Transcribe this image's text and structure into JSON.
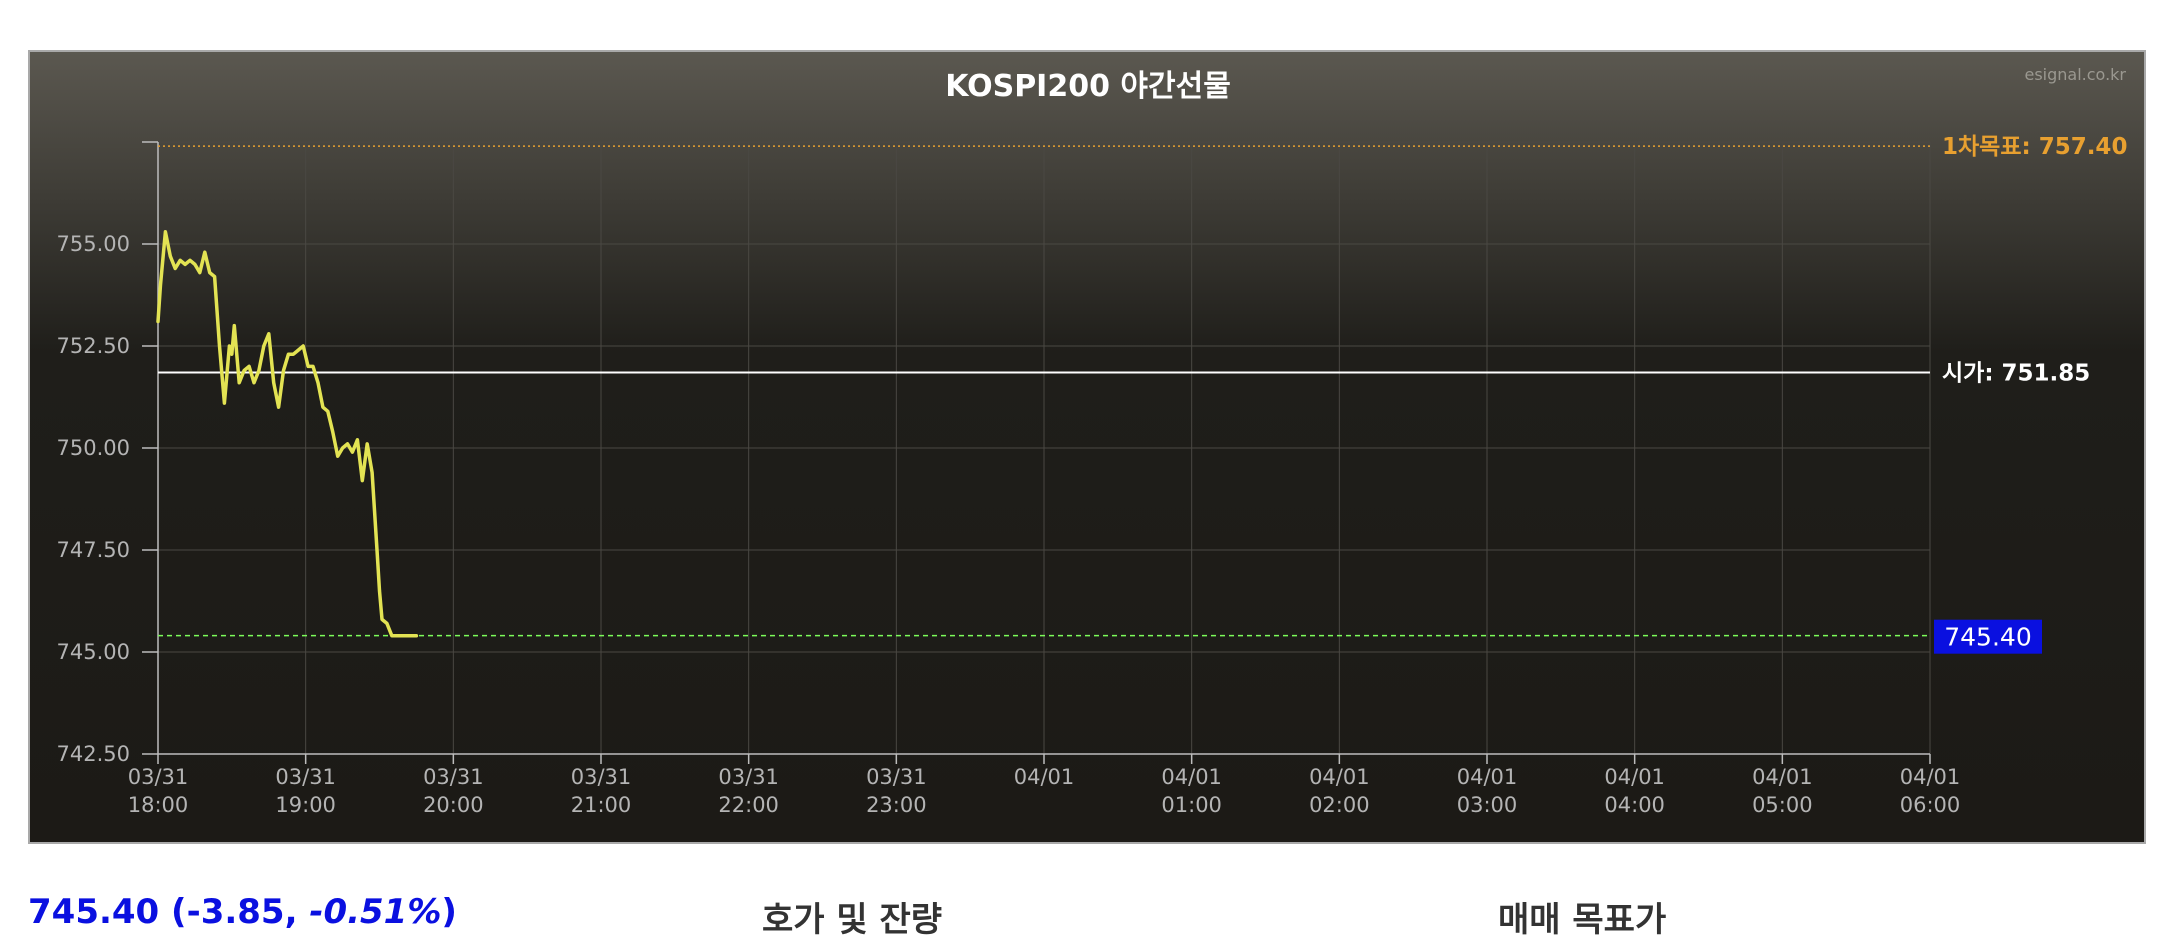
{
  "chart_data": {
    "type": "line",
    "title": "KOSPI200 야간선물",
    "watermark": "esignal.co.kr",
    "ylim": [
      742.5,
      757.5
    ],
    "y_ticks": [
      "742.50",
      "745.00",
      "747.50",
      "750.00",
      "752.50",
      "755.00"
    ],
    "x_ticks": [
      {
        "date": "03/31",
        "time": "18:00"
      },
      {
        "date": "03/31",
        "time": "19:00"
      },
      {
        "date": "03/31",
        "time": "20:00"
      },
      {
        "date": "03/31",
        "time": "21:00"
      },
      {
        "date": "03/31",
        "time": "22:00"
      },
      {
        "date": "03/31",
        "time": "23:00"
      },
      {
        "date": "04/01",
        "time": ""
      },
      {
        "date": "04/01",
        "time": "01:00"
      },
      {
        "date": "04/01",
        "time": "02:00"
      },
      {
        "date": "04/01",
        "time": "03:00"
      },
      {
        "date": "04/01",
        "time": "04:00"
      },
      {
        "date": "04/01",
        "time": "05:00"
      },
      {
        "date": "04/01",
        "time": "06:00"
      }
    ],
    "x_range": [
      "03/31 18:00",
      "04/01 06:00"
    ],
    "grid": true,
    "series": [
      {
        "color": "#e3e353",
        "x": [
          "18:00",
          "18:01",
          "18:03",
          "18:05",
          "18:07",
          "18:09",
          "18:11",
          "18:13",
          "18:15",
          "18:17",
          "18:19",
          "18:21",
          "18:23",
          "18:25",
          "18:27",
          "18:29",
          "18:30",
          "18:31",
          "18:33",
          "18:35",
          "18:37",
          "18:39",
          "18:41",
          "18:43",
          "18:45",
          "18:47",
          "18:49",
          "18:51",
          "18:53",
          "18:55",
          "18:57",
          "18:59",
          "19:01",
          "19:03",
          "19:05",
          "19:07",
          "19:09",
          "19:11",
          "19:13",
          "19:15",
          "19:17",
          "19:19",
          "19:21",
          "19:23",
          "19:25",
          "19:27",
          "19:29",
          "19:30",
          "19:31",
          "19:33",
          "19:35",
          "19:37",
          "19:39",
          "19:41",
          "19:43",
          "19:45"
        ],
        "values": [
          753.1,
          754.0,
          755.3,
          754.7,
          754.4,
          754.6,
          754.5,
          754.6,
          754.5,
          754.3,
          754.8,
          754.3,
          754.2,
          752.5,
          751.1,
          752.5,
          752.3,
          753.0,
          751.6,
          751.9,
          752.0,
          751.6,
          751.9,
          752.5,
          752.8,
          751.6,
          751.0,
          751.9,
          752.3,
          752.3,
          752.4,
          752.5,
          752.0,
          752.0,
          751.6,
          751.0,
          750.9,
          750.4,
          749.8,
          750.0,
          750.1,
          749.9,
          750.2,
          749.2,
          750.1,
          749.4,
          747.5,
          746.5,
          745.8,
          745.7,
          745.4,
          745.4,
          745.4,
          745.4,
          745.4,
          745.4
        ]
      }
    ],
    "reference_lines": [
      {
        "label": "1차목표: 757.40",
        "value": 757.4,
        "color": "#e8a030",
        "style": "dotted"
      },
      {
        "label": "시가: 751.85",
        "value": 751.85,
        "color": "#ffffff",
        "style": "solid"
      },
      {
        "label": "745.40",
        "value": 745.4,
        "color": "#7cfc5a",
        "style": "dashed",
        "badge_color": "#0a10e0"
      }
    ]
  },
  "footer": {
    "price_main": "745.40 (-3.85, ",
    "price_pct": "-0.51%",
    "price_close": ")",
    "orderbook_title": "호가 및 잔량",
    "target_title": "매매 목표가"
  }
}
